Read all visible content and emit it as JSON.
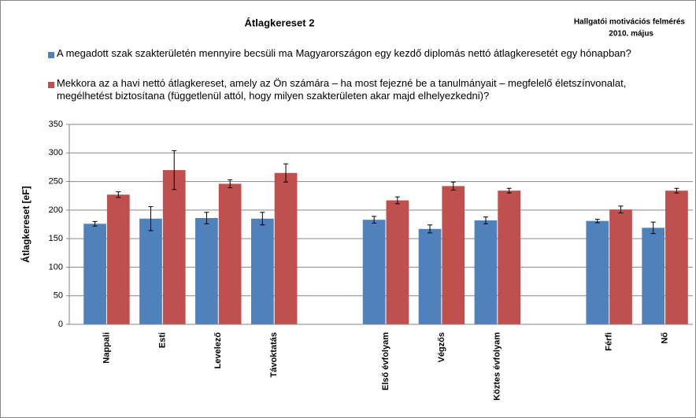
{
  "chart_data": {
    "type": "bar",
    "title": "Átlagkereset 2",
    "subtitle": [
      "Hallgatói motivációs felmérés",
      "2010. május"
    ],
    "y_label": "Átlagkereset [eF]",
    "categories": [
      "Nappali",
      "Esti",
      "Levelező",
      "Távoktatás",
      null,
      "Első évfolyam",
      "Végzős",
      "Köztes évfolyam",
      null,
      "Férfi",
      "Nő"
    ],
    "series": [
      {
        "name": "A megadott szak szakterületén mennyire becsüli ma Magyarországon egy kezdő diplomás nettó átlagkeresetét egy hónapban?",
        "color": "#4f81bd",
        "values": [
          176,
          185,
          186,
          185,
          null,
          183,
          167,
          182,
          null,
          181,
          169
        ],
        "errors": [
          4,
          21,
          10,
          11,
          null,
          6,
          7,
          6,
          null,
          3,
          10
        ]
      },
      {
        "name": "Mekkora az a havi nettó átlagkereset, amely az Ön számára – ha most fejezné be a tanulmányait – megfelelő életszínvonalat, megélhetést biztosítana (függetlenül attól, hogy milyen szakterületen akar majd elhelyezkedni)?",
        "color": "#c0504d",
        "values": [
          227,
          270,
          246,
          265,
          null,
          217,
          242,
          234,
          null,
          201,
          234
        ],
        "errors": [
          5,
          34,
          7,
          16,
          null,
          6,
          7,
          4,
          null,
          6,
          4
        ]
      }
    ],
    "ylim": [
      0,
      350
    ],
    "yticks": [
      0,
      50,
      100,
      150,
      200,
      250,
      300,
      350
    ],
    "grid": true
  }
}
